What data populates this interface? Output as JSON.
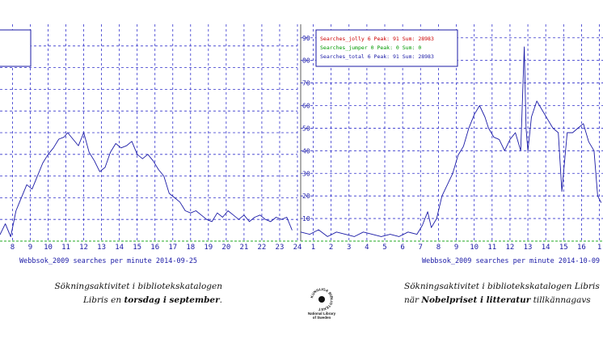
{
  "chart_data": [
    {
      "type": "line",
      "title": "Webbsok_2009 searches per minute 2014-09-25",
      "x_tick_labels": [
        "8",
        "9",
        "10",
        "11",
        "12",
        "13",
        "14",
        "15",
        "16",
        "17",
        "18",
        "19",
        "20",
        "21",
        "22",
        "23",
        "24"
      ],
      "x_ticks": [
        8,
        9,
        10,
        11,
        12,
        13,
        14,
        15,
        16,
        17,
        18,
        19,
        20,
        21,
        22,
        23,
        24
      ],
      "xlim": [
        7.3,
        24
      ],
      "ylim": [
        0,
        100
      ],
      "grid": true,
      "legend_entries": [],
      "series": [
        {
          "name": "Searches_total",
          "color": "#1a1aa6",
          "x": [
            7.3,
            7.6,
            7.9,
            8.2,
            8.5,
            8.8,
            9.1,
            9.4,
            9.7,
            10.0,
            10.3,
            10.6,
            10.9,
            11.1,
            11.4,
            11.7,
            12.0,
            12.3,
            12.6,
            12.9,
            13.2,
            13.5,
            13.8,
            14.1,
            14.4,
            14.7,
            15.0,
            15.3,
            15.6,
            15.9,
            16.2,
            16.5,
            16.8,
            17.1,
            17.4,
            17.7,
            18.0,
            18.3,
            18.6,
            18.9,
            19.2,
            19.5,
            19.8,
            20.1,
            20.4,
            20.7,
            21.0,
            21.3,
            21.6,
            21.9,
            22.2,
            22.5,
            22.8,
            23.1,
            23.4,
            23.7
          ],
          "values": [
            3,
            8,
            2,
            14,
            20,
            26,
            24,
            30,
            36,
            40,
            43,
            47,
            48,
            50,
            47,
            44,
            50,
            41,
            37,
            32,
            34,
            41,
            45,
            43,
            44,
            46,
            40,
            38,
            40,
            37,
            33,
            30,
            22,
            20,
            18,
            14,
            13,
            14,
            12,
            10,
            9,
            13,
            11,
            14,
            12,
            10,
            12,
            9,
            11,
            12,
            10,
            9,
            11,
            10,
            11,
            5
          ]
        }
      ]
    },
    {
      "type": "line",
      "title": "Webbsok_2009 searches per minute 2014-10-09",
      "x_tick_labels": [
        "1",
        "2",
        "3",
        "4",
        "5",
        "6",
        "7",
        "8",
        "9",
        "10",
        "11",
        "12",
        "13",
        "14",
        "15",
        "16",
        "1"
      ],
      "x_ticks": [
        1,
        2,
        3,
        4,
        5,
        6,
        7,
        8,
        9,
        10,
        11,
        12,
        13,
        14,
        15,
        16,
        17
      ],
      "xlim": [
        0.3,
        17.2
      ],
      "y_tick_labels": [
        "10",
        "20",
        "30",
        "40",
        "50",
        "60",
        "70",
        "80",
        "90"
      ],
      "y_ticks": [
        10,
        20,
        30,
        40,
        50,
        60,
        70,
        80,
        90
      ],
      "ylim": [
        0,
        96
      ],
      "grid": true,
      "legend_entries": [
        {
          "text": "Searches_jolly 6 Peak: 91 Sum: 28983",
          "color": "#cc0000"
        },
        {
          "text": "Searches_jumper 0 Peak: 0 Sum: 0",
          "color": "#009900"
        },
        {
          "text": "Searches_total 6 Peak: 91 Sum: 28983",
          "color": "#1a1aa6"
        }
      ],
      "series": [
        {
          "name": "Searches_total",
          "color": "#1a1aa6",
          "x": [
            0.3,
            0.8,
            1.3,
            1.8,
            2.3,
            2.8,
            3.3,
            3.8,
            4.3,
            4.8,
            5.3,
            5.8,
            6.3,
            6.8,
            7.1,
            7.4,
            7.6,
            7.9,
            8.2,
            8.5,
            8.8,
            9.1,
            9.4,
            9.7,
            10.0,
            10.3,
            10.6,
            10.8,
            11.1,
            11.4,
            11.7,
            12.0,
            12.3,
            12.6,
            12.8,
            12.9,
            13.0,
            13.2,
            13.5,
            13.8,
            14.1,
            14.4,
            14.7,
            14.9,
            15.2,
            15.5,
            15.8,
            16.1,
            16.4,
            16.7,
            16.9,
            17.1
          ],
          "values": [
            4,
            3,
            5,
            2,
            4,
            3,
            2,
            4,
            3,
            2,
            3,
            2,
            4,
            3,
            7,
            13,
            6,
            10,
            20,
            25,
            30,
            38,
            42,
            50,
            56,
            60,
            55,
            50,
            46,
            45,
            40,
            45,
            48,
            40,
            86,
            50,
            40,
            55,
            62,
            58,
            54,
            50,
            48,
            22,
            48,
            48,
            50,
            52,
            44,
            40,
            20,
            17
          ]
        }
      ]
    }
  ],
  "captions": {
    "left_line1": "Sökningsaktivitet i bibliotekskatalogen",
    "left_line2_pre": "Libris en ",
    "left_line2_bold": "torsdag i september",
    "left_line2_post": ".",
    "right_line1": "Sökningsaktivitet i bibliotekskatalogen Libris",
    "right_line2_pre": "när ",
    "right_line2_bold": "Nobelpriset i litteratur",
    "right_line2_post": " tillkännagavs"
  },
  "logo": {
    "ring_text": "KUNGLIGA BIBLIOTEKET",
    "org_line1": "National Library",
    "org_line2": "of Sweden"
  }
}
